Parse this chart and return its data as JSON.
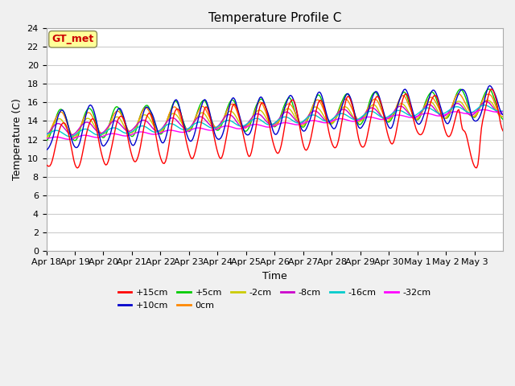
{
  "title": "Temperature Profile C",
  "xlabel": "Time",
  "ylabel": "Temperature (C)",
  "ylim": [
    0,
    24
  ],
  "yticks": [
    0,
    2,
    4,
    6,
    8,
    10,
    12,
    14,
    16,
    18,
    20,
    22,
    24
  ],
  "x_labels": [
    "Apr 18",
    "Apr 19",
    "Apr 20",
    "Apr 21",
    "Apr 22",
    "Apr 23",
    "Apr 24",
    "Apr 25",
    "Apr 26",
    "Apr 27",
    "Apr 28",
    "Apr 29",
    "Apr 30",
    "May 1",
    "May 2",
    "May 3"
  ],
  "legend_items": [
    {
      "label": "+15cm",
      "color": "#ff0000"
    },
    {
      "label": "+10cm",
      "color": "#0000cc"
    },
    {
      "label": "+5cm",
      "color": "#00cc00"
    },
    {
      "label": "0cm",
      "color": "#ff8800"
    },
    {
      "label": "-2cm",
      "color": "#cccc00"
    },
    {
      "label": "-8cm",
      "color": "#cc00cc"
    },
    {
      "label": "-16cm",
      "color": "#00cccc"
    },
    {
      "label": "-32cm",
      "color": "#ff00ff"
    }
  ],
  "annotation_text": "GT_met",
  "annotation_color": "#cc0000",
  "annotation_bg": "#ffff99",
  "bg_color": "#f0f0f0",
  "plot_bg": "#ffffff",
  "grid_color": "#cccccc"
}
